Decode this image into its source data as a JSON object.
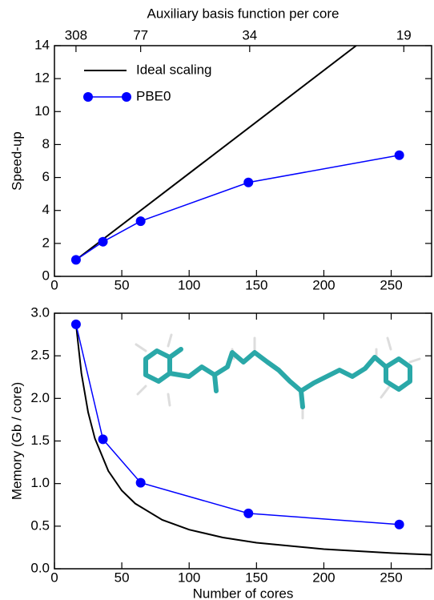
{
  "chart_data": [
    {
      "type": "line",
      "ylabel": "Speed-up",
      "x2label": "Auxiliary basis function per core",
      "xlim": [
        0,
        280
      ],
      "xticks": [
        0,
        50,
        100,
        150,
        200,
        250
      ],
      "ylim": [
        0,
        14
      ],
      "yticks": [
        0,
        2,
        4,
        6,
        8,
        10,
        12,
        14
      ],
      "x2scale": "reciprocal",
      "x2_product": 4928,
      "x2ticks": [
        308,
        77,
        34,
        19
      ],
      "legend": "upper left",
      "series": [
        {
          "name": "Ideal scaling",
          "color": "#000000",
          "marker": false,
          "x": [
            16,
            224
          ],
          "values": [
            1,
            14
          ]
        },
        {
          "name": "PBE0",
          "color": "#0000ff",
          "marker": true,
          "x": [
            16,
            36,
            64,
            144,
            256
          ],
          "values": [
            1,
            2.1,
            3.35,
            5.7,
            7.35
          ]
        }
      ]
    },
    {
      "type": "line",
      "xlabel": "Number of cores",
      "ylabel": "Memory  (Gb / core)",
      "xlim": [
        0,
        280
      ],
      "xticks": [
        0,
        50,
        100,
        150,
        200,
        250
      ],
      "ylim": [
        0,
        3
      ],
      "yticks": [
        {
          "value": 0,
          "label": "0.0"
        },
        {
          "value": 0.5,
          "label": "0.5"
        },
        {
          "value": 1,
          "label": "1.0"
        },
        {
          "value": 1.5,
          "label": "1.5"
        },
        {
          "value": 2,
          "label": "2.0"
        },
        {
          "value": 2.5,
          "label": "2.5"
        },
        {
          "value": 3,
          "label": "3.0"
        }
      ],
      "series": [
        {
          "color": "#000000",
          "marker": false,
          "x": [
            16,
            20,
            25,
            30,
            40,
            50,
            60,
            80,
            100,
            125,
            150,
            200,
            250,
            280
          ],
          "values": [
            2.87,
            2.296,
            1.837,
            1.531,
            1.148,
            0.918,
            0.765,
            0.574,
            0.459,
            0.367,
            0.306,
            0.23,
            0.184,
            0.164
          ]
        },
        {
          "color": "#0000ff",
          "marker": true,
          "x": [
            16,
            36,
            64,
            144,
            256
          ],
          "values": [
            2.87,
            1.52,
            1.01,
            0.65,
            0.52
          ]
        }
      ]
    }
  ]
}
